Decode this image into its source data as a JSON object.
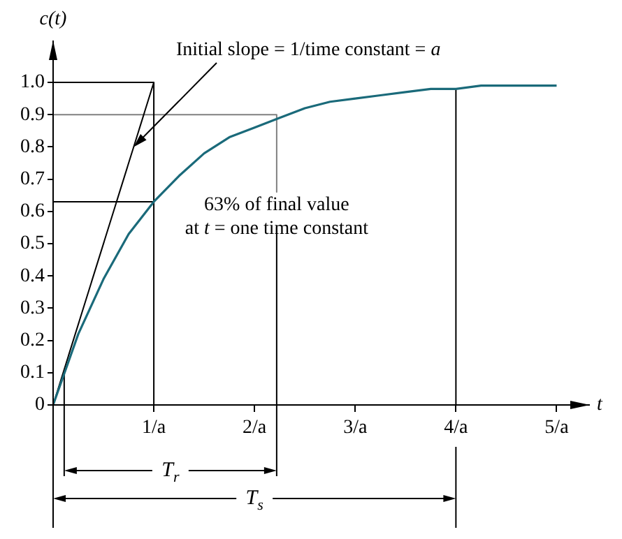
{
  "chart_data": {
    "type": "line",
    "xlabel": "t",
    "ylabel": "c(t)",
    "xlim": [
      0,
      5.33
    ],
    "ylim": [
      0,
      1.13
    ],
    "xticks": [
      {
        "value": 1,
        "label": "1/a"
      },
      {
        "value": 2,
        "label": "2/a"
      },
      {
        "value": 3,
        "label": "3/a"
      },
      {
        "value": 4,
        "label": "4/a"
      },
      {
        "value": 5,
        "label": "5/a"
      }
    ],
    "yticks": [
      0,
      0.1,
      0.2,
      0.3,
      0.4,
      0.5,
      0.6,
      0.7,
      0.8,
      0.9,
      {
        "value": 1,
        "label": "1.0"
      }
    ],
    "series": [
      {
        "color": "#1a6a7a",
        "x": [
          0,
          0.25,
          0.5,
          0.75,
          1,
          1.25,
          1.5,
          1.75,
          2,
          2.25,
          2.5,
          2.75,
          3,
          3.25,
          3.5,
          3.75,
          4,
          4.25,
          4.5,
          4.75,
          5
        ],
        "values": [
          0,
          0.22,
          0.39,
          0.53,
          0.63,
          0.71,
          0.78,
          0.83,
          0.86,
          0.89,
          0.92,
          0.94,
          0.95,
          0.96,
          0.97,
          0.98,
          0.98,
          0.99,
          0.99,
          0.99,
          0.99
        ]
      },
      {
        "color": "#000000",
        "x": [
          0,
          1
        ],
        "values": [
          0,
          1
        ]
      },
      {
        "color": "#000000",
        "x": [
          0,
          1,
          1
        ],
        "values": [
          1,
          1,
          0
        ]
      },
      {
        "color": "#000000",
        "x": [
          0,
          1
        ],
        "values": [
          0.63,
          0.63
        ]
      },
      {
        "color": "#808080",
        "x": [
          0,
          2.22,
          2.22
        ],
        "values": [
          0.9,
          0.9,
          0.66
        ]
      },
      {
        "color": "#000000",
        "x": [
          2.22,
          2.22
        ],
        "values": [
          0.55,
          0
        ]
      },
      {
        "color": "#000000",
        "x": [
          4,
          4
        ],
        "values": [
          0.98,
          0
        ]
      },
      {
        "color": "#000000",
        "x": [
          0.11,
          0.11
        ],
        "values": [
          0.1,
          0
        ]
      }
    ],
    "annotations": [
      {
        "text": "Initial slope = 1/time constant = a",
        "x": 0.8,
        "y": 0.8
      },
      "63% of final value\nat t = one time constant",
      "T$_{r}$",
      "T$_{s}$"
    ],
    "marker": "none",
    "grid": false,
    "legend": false
  }
}
